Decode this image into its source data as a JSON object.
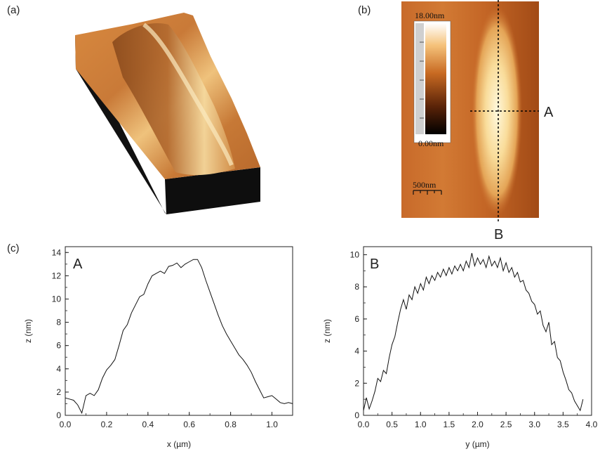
{
  "panels": {
    "a_label": "(a)",
    "b_label": "(b)",
    "c_label": "(c)"
  },
  "afm_image": {
    "colorbar_max": "18.00nm",
    "colorbar_min": "0.00nm",
    "scalebar_label": "500nm",
    "line_a_label": "A",
    "line_b_label": "B"
  },
  "chart_data": [
    {
      "type": "line",
      "panel_label": "A",
      "xlabel": "x (µm)",
      "ylabel": "z (nm)",
      "xlim": [
        0,
        1.1
      ],
      "ylim": [
        0,
        14.5
      ],
      "xticks": [
        "0.0",
        "0.2",
        "0.4",
        "0.6",
        "0.8",
        "1.0"
      ],
      "yticks": [
        "0",
        "2",
        "4",
        "6",
        "8",
        "10",
        "12",
        "14"
      ],
      "x": [
        0.0,
        0.02,
        0.04,
        0.06,
        0.08,
        0.1,
        0.12,
        0.14,
        0.16,
        0.18,
        0.2,
        0.22,
        0.24,
        0.26,
        0.28,
        0.3,
        0.32,
        0.34,
        0.36,
        0.38,
        0.4,
        0.42,
        0.44,
        0.46,
        0.48,
        0.5,
        0.52,
        0.54,
        0.56,
        0.58,
        0.6,
        0.62,
        0.64,
        0.66,
        0.68,
        0.7,
        0.72,
        0.74,
        0.76,
        0.78,
        0.8,
        0.82,
        0.84,
        0.86,
        0.88,
        0.9,
        0.92,
        0.94,
        0.96,
        0.98,
        1.0,
        1.02,
        1.04,
        1.06,
        1.08,
        1.1
      ],
      "y": [
        1.5,
        1.4,
        1.3,
        0.9,
        0.2,
        1.7,
        1.9,
        1.7,
        2.2,
        3.2,
        3.9,
        4.3,
        4.8,
        6.0,
        7.3,
        7.8,
        8.8,
        9.5,
        10.2,
        10.4,
        11.3,
        12.0,
        12.2,
        12.4,
        12.2,
        12.8,
        12.9,
        13.1,
        12.7,
        13.0,
        13.2,
        13.4,
        13.4,
        12.7,
        11.6,
        10.6,
        9.6,
        8.6,
        7.7,
        7.0,
        6.4,
        5.8,
        5.2,
        4.8,
        4.3,
        3.7,
        2.9,
        2.2,
        1.5,
        1.6,
        1.7,
        1.4,
        1.1,
        1.0,
        1.1,
        1.0
      ]
    },
    {
      "type": "line",
      "panel_label": "B",
      "xlabel": "y (µm)",
      "ylabel": "z (nm)",
      "xlim": [
        0,
        4.0
      ],
      "ylim": [
        0,
        10.5
      ],
      "xticks": [
        "0.0",
        "0.5",
        "1.0",
        "1.5",
        "2.0",
        "2.5",
        "3.0",
        "3.5",
        "4.0"
      ],
      "yticks": [
        "0",
        "2",
        "4",
        "6",
        "8",
        "10"
      ],
      "x": [
        0.0,
        0.05,
        0.1,
        0.15,
        0.2,
        0.25,
        0.3,
        0.35,
        0.4,
        0.45,
        0.5,
        0.55,
        0.6,
        0.65,
        0.7,
        0.75,
        0.8,
        0.85,
        0.9,
        0.95,
        1.0,
        1.05,
        1.1,
        1.15,
        1.2,
        1.25,
        1.3,
        1.35,
        1.4,
        1.45,
        1.5,
        1.55,
        1.6,
        1.65,
        1.7,
        1.75,
        1.8,
        1.85,
        1.9,
        1.95,
        2.0,
        2.05,
        2.1,
        2.15,
        2.2,
        2.25,
        2.3,
        2.35,
        2.4,
        2.45,
        2.5,
        2.55,
        2.6,
        2.65,
        2.7,
        2.75,
        2.8,
        2.85,
        2.9,
        2.95,
        3.0,
        3.05,
        3.1,
        3.15,
        3.2,
        3.25,
        3.3,
        3.35,
        3.4,
        3.45,
        3.5,
        3.55,
        3.6,
        3.65,
        3.7,
        3.75,
        3.8,
        3.85
      ],
      "y": [
        0.3,
        1.1,
        0.4,
        0.9,
        1.5,
        2.3,
        2.1,
        2.8,
        2.6,
        3.6,
        4.4,
        4.9,
        5.8,
        6.6,
        7.2,
        6.6,
        7.5,
        7.2,
        8.0,
        7.6,
        8.2,
        7.8,
        8.6,
        8.2,
        8.7,
        8.4,
        8.9,
        8.6,
        9.1,
        8.7,
        9.2,
        8.8,
        9.3,
        9.0,
        9.4,
        9.0,
        9.6,
        9.2,
        10.1,
        9.3,
        9.8,
        9.4,
        9.7,
        9.2,
        9.9,
        9.3,
        9.6,
        9.2,
        9.8,
        9.0,
        9.5,
        8.9,
        9.2,
        8.6,
        8.9,
        8.3,
        8.4,
        7.8,
        7.6,
        7.1,
        6.9,
        6.3,
        6.5,
        5.6,
        5.2,
        5.8,
        4.4,
        4.6,
        3.6,
        3.4,
        2.7,
        2.2,
        1.6,
        1.4,
        0.9,
        0.6,
        0.3,
        1.0
      ]
    }
  ]
}
